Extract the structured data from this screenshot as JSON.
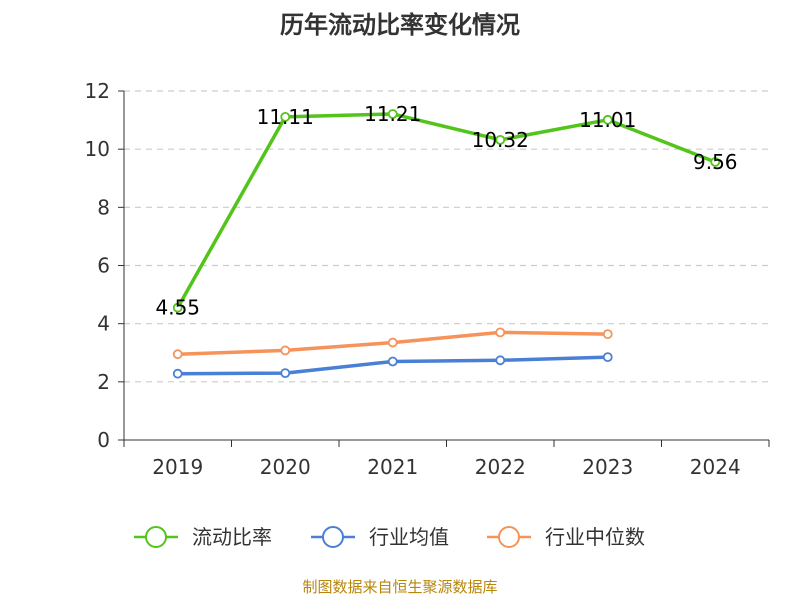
{
  "chart_data": {
    "type": "line",
    "title": "历年流动比率变化情况",
    "categories": [
      "2019",
      "2020",
      "2021",
      "2022",
      "2023",
      "2024"
    ],
    "ylim": [
      0,
      12
    ],
    "yticks": [
      0,
      2,
      4,
      6,
      8,
      10,
      12
    ],
    "grid": true,
    "legend_position": "bottom",
    "series": [
      {
        "name": "流动比率",
        "color": "#52c41a",
        "values": [
          4.55,
          11.11,
          11.21,
          10.32,
          11.01,
          9.56
        ],
        "labels": [
          "4.55",
          "11.11",
          "11.21",
          "10.32",
          "11.01",
          "9.56"
        ]
      },
      {
        "name": "行业均值",
        "color": "#4a7fd6",
        "values": [
          2.28,
          2.3,
          2.7,
          2.74,
          2.85,
          null
        ]
      },
      {
        "name": "行业中位数",
        "color": "#f5935a",
        "values": [
          2.95,
          3.08,
          3.35,
          3.7,
          3.64,
          null
        ]
      }
    ],
    "source": "制图数据来自恒生聚源数据库"
  }
}
